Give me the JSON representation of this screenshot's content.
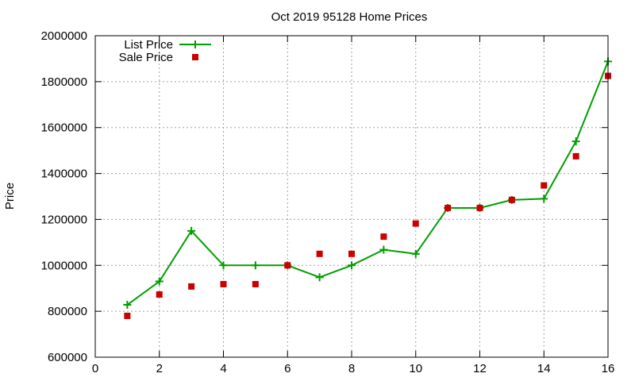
{
  "chart_data": {
    "type": "line",
    "title": "Oct 2019 95128 Home Prices",
    "xlabel": "",
    "ylabel": "Price",
    "xlim": [
      0,
      16
    ],
    "ylim": [
      600000,
      2000000
    ],
    "xticks": [
      0,
      2,
      4,
      6,
      8,
      10,
      12,
      14,
      16
    ],
    "yticks": [
      600000,
      800000,
      1000000,
      1200000,
      1400000,
      1600000,
      1800000,
      2000000
    ],
    "xtick_labels": [
      "0",
      "2",
      "4",
      "6",
      "8",
      "10",
      "12",
      "14",
      "16"
    ],
    "ytick_labels": [
      "600000",
      "800000",
      "1000000",
      "1200000",
      "1400000",
      "1600000",
      "1800000",
      "2000000"
    ],
    "grid": true,
    "legend_position": "top-left",
    "series": [
      {
        "name": "List Price",
        "style": "line-plus",
        "color": "#009e00",
        "x": [
          1,
          2,
          3,
          4,
          5,
          6,
          7,
          8,
          9,
          10,
          11,
          12,
          13,
          14,
          15,
          16
        ],
        "y": [
          828000,
          930000,
          1150000,
          1000000,
          1000000,
          1000000,
          948000,
          1000000,
          1068000,
          1050000,
          1250000,
          1250000,
          1285000,
          1290000,
          1540000,
          1888000
        ]
      },
      {
        "name": "Sale Price",
        "style": "square-marker",
        "color": "#cc0000",
        "x": [
          1,
          2,
          3,
          4,
          5,
          6,
          7,
          8,
          9,
          10,
          11,
          12,
          13,
          14,
          15,
          16
        ],
        "y": [
          780000,
          873000,
          908000,
          918000,
          918000,
          1000000,
          1050000,
          1050000,
          1125000,
          1182000,
          1250000,
          1250000,
          1285000,
          1348000,
          1475000,
          1825000
        ]
      }
    ]
  }
}
